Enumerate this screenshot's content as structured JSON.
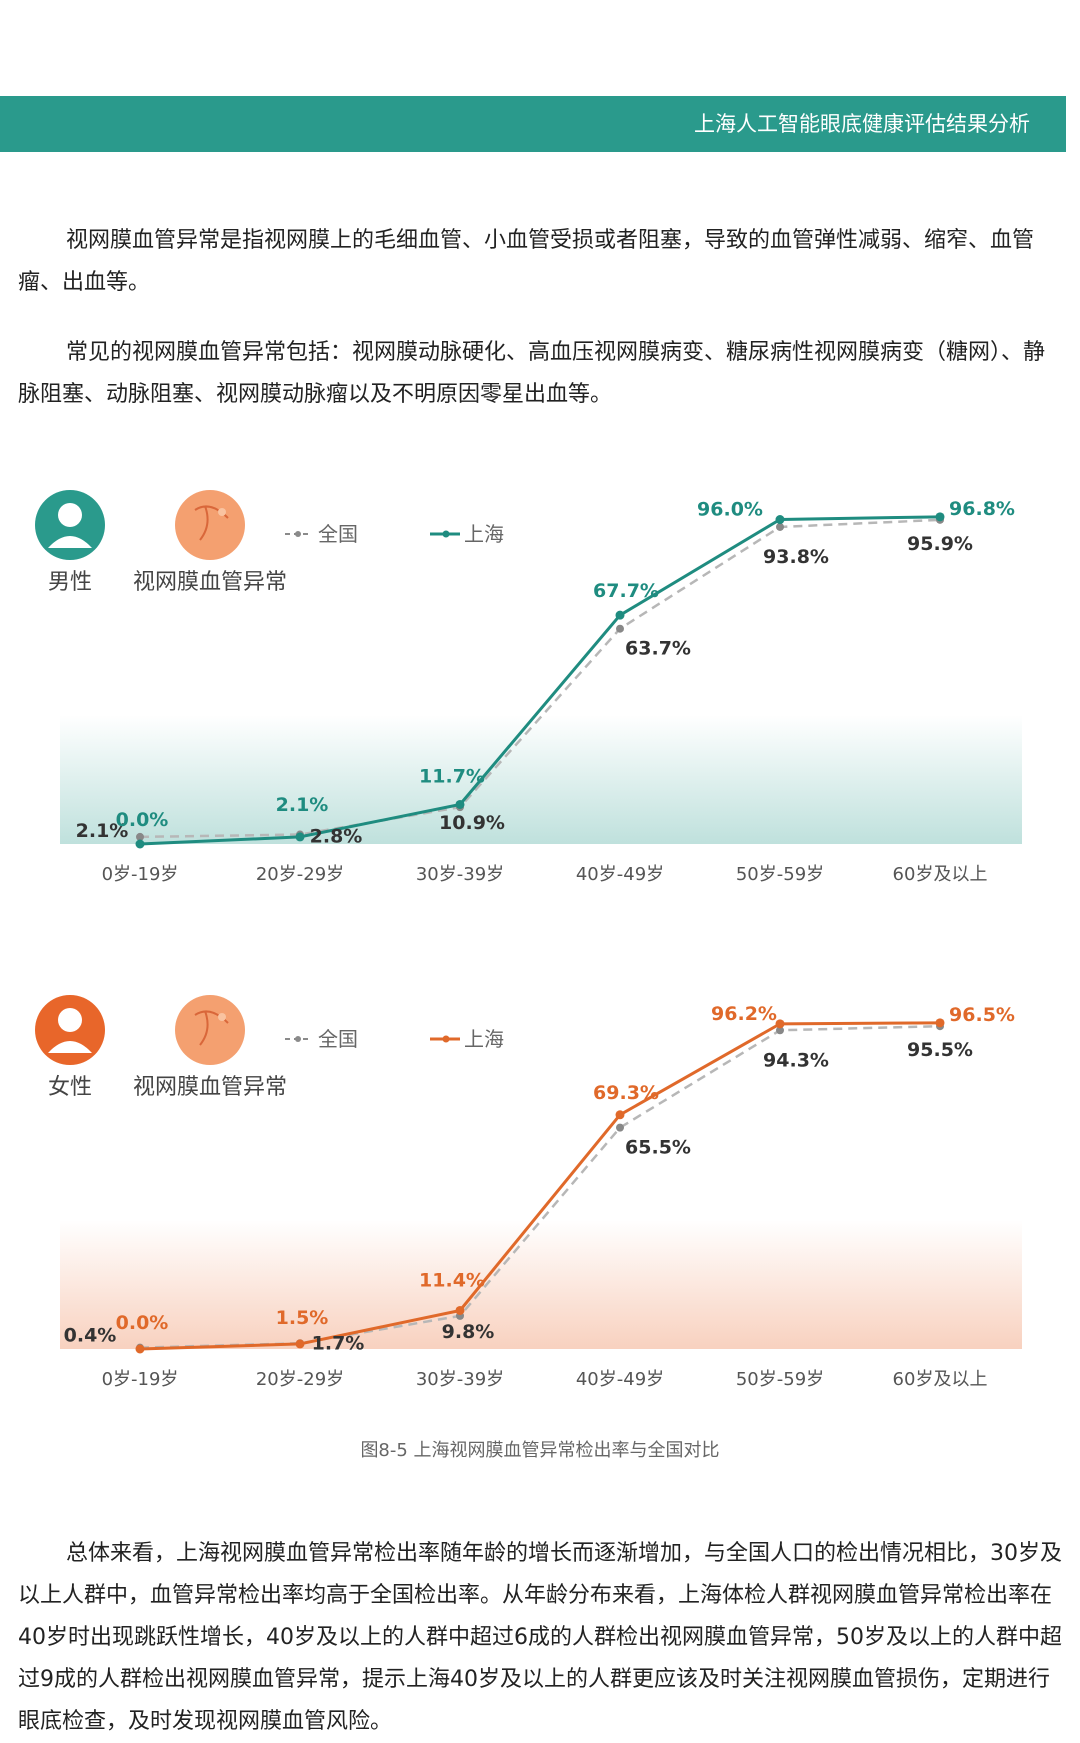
{
  "header": {
    "title": "上海人工智能眼底健康评估结果分析"
  },
  "paragraphs": [
    "视网膜血管异常是指视网膜上的毛细血管、小血管受损或者阻塞，导致的血管弹性减弱、缩窄、血管瘤、出血等。",
    "常见的视网膜血管异常包括：视网膜动脉硬化、高血压视网膜病变、糖尿病性视网膜病变（糖网）、静脉阻塞、动脉阻塞、视网膜动脉瘤以及不明原因零星出血等。",
    "总体来看，上海视网膜血管异常检出率随年龄的增长而逐渐增加，与全国人口的检出情况相比，30岁及以上人群中，血管异常检出率均高于全国检出率。从年龄分布来看，上海体检人群视网膜血管异常检出率在40岁时出现跳跃性增长，40岁及以上的人群中超过6成的人群检出视网膜血管异常，50岁及以上的人群中超过9成的人群检出视网膜血管异常，提示上海40岁及以上的人群更应该及时关注视网膜血管损伤，定期进行眼底检查，及时发现视网膜血管风险。"
  ],
  "caption": "图8-5 上海视网膜血管异常检出率与全国对比",
  "chart_data": [
    {
      "type": "line",
      "gender": "男性",
      "topic": "视网膜血管异常",
      "categories": [
        "0岁-19岁",
        "20岁-29岁",
        "30岁-39岁",
        "40岁-49岁",
        "50岁-59岁",
        "60岁及以上"
      ],
      "series": [
        {
          "name": "全国",
          "values": [
            2.1,
            2.8,
            10.9,
            63.7,
            93.8,
            95.9
          ],
          "labels": [
            "2.1%",
            "2.8%",
            "10.9%",
            "63.7%",
            "93.8%",
            "95.9%"
          ],
          "color": "#8a8a8a",
          "dashed": true
        },
        {
          "name": "上海",
          "values": [
            0.0,
            2.1,
            11.7,
            67.7,
            96.0,
            96.8
          ],
          "labels": [
            "0.0%",
            "2.1%",
            "11.7%",
            "67.7%",
            "96.0%",
            "96.8%"
          ],
          "color": "#1f8c80",
          "dashed": false
        }
      ],
      "ylim": [
        0,
        100
      ],
      "accent": "#2a9a8c",
      "icon": "male-user-icon"
    },
    {
      "type": "line",
      "gender": "女性",
      "topic": "视网膜血管异常",
      "categories": [
        "0岁-19岁",
        "20岁-29岁",
        "30岁-39岁",
        "40岁-49岁",
        "50岁-59岁",
        "60岁及以上"
      ],
      "series": [
        {
          "name": "全国",
          "values": [
            0.4,
            1.7,
            9.8,
            65.5,
            94.3,
            95.5
          ],
          "labels": [
            "0.4%",
            "1.7%",
            "9.8%",
            "65.5%",
            "94.3%",
            "95.5%"
          ],
          "color": "#8a8a8a",
          "dashed": true
        },
        {
          "name": "上海",
          "values": [
            0.0,
            1.5,
            11.4,
            69.3,
            96.2,
            96.5
          ],
          "labels": [
            "0.0%",
            "1.5%",
            "11.4%",
            "69.3%",
            "96.2%",
            "96.5%"
          ],
          "color": "#e0692a",
          "dashed": false
        }
      ],
      "ylim": [
        0,
        100
      ],
      "accent": "#e8662a",
      "icon": "female-user-icon"
    }
  ]
}
